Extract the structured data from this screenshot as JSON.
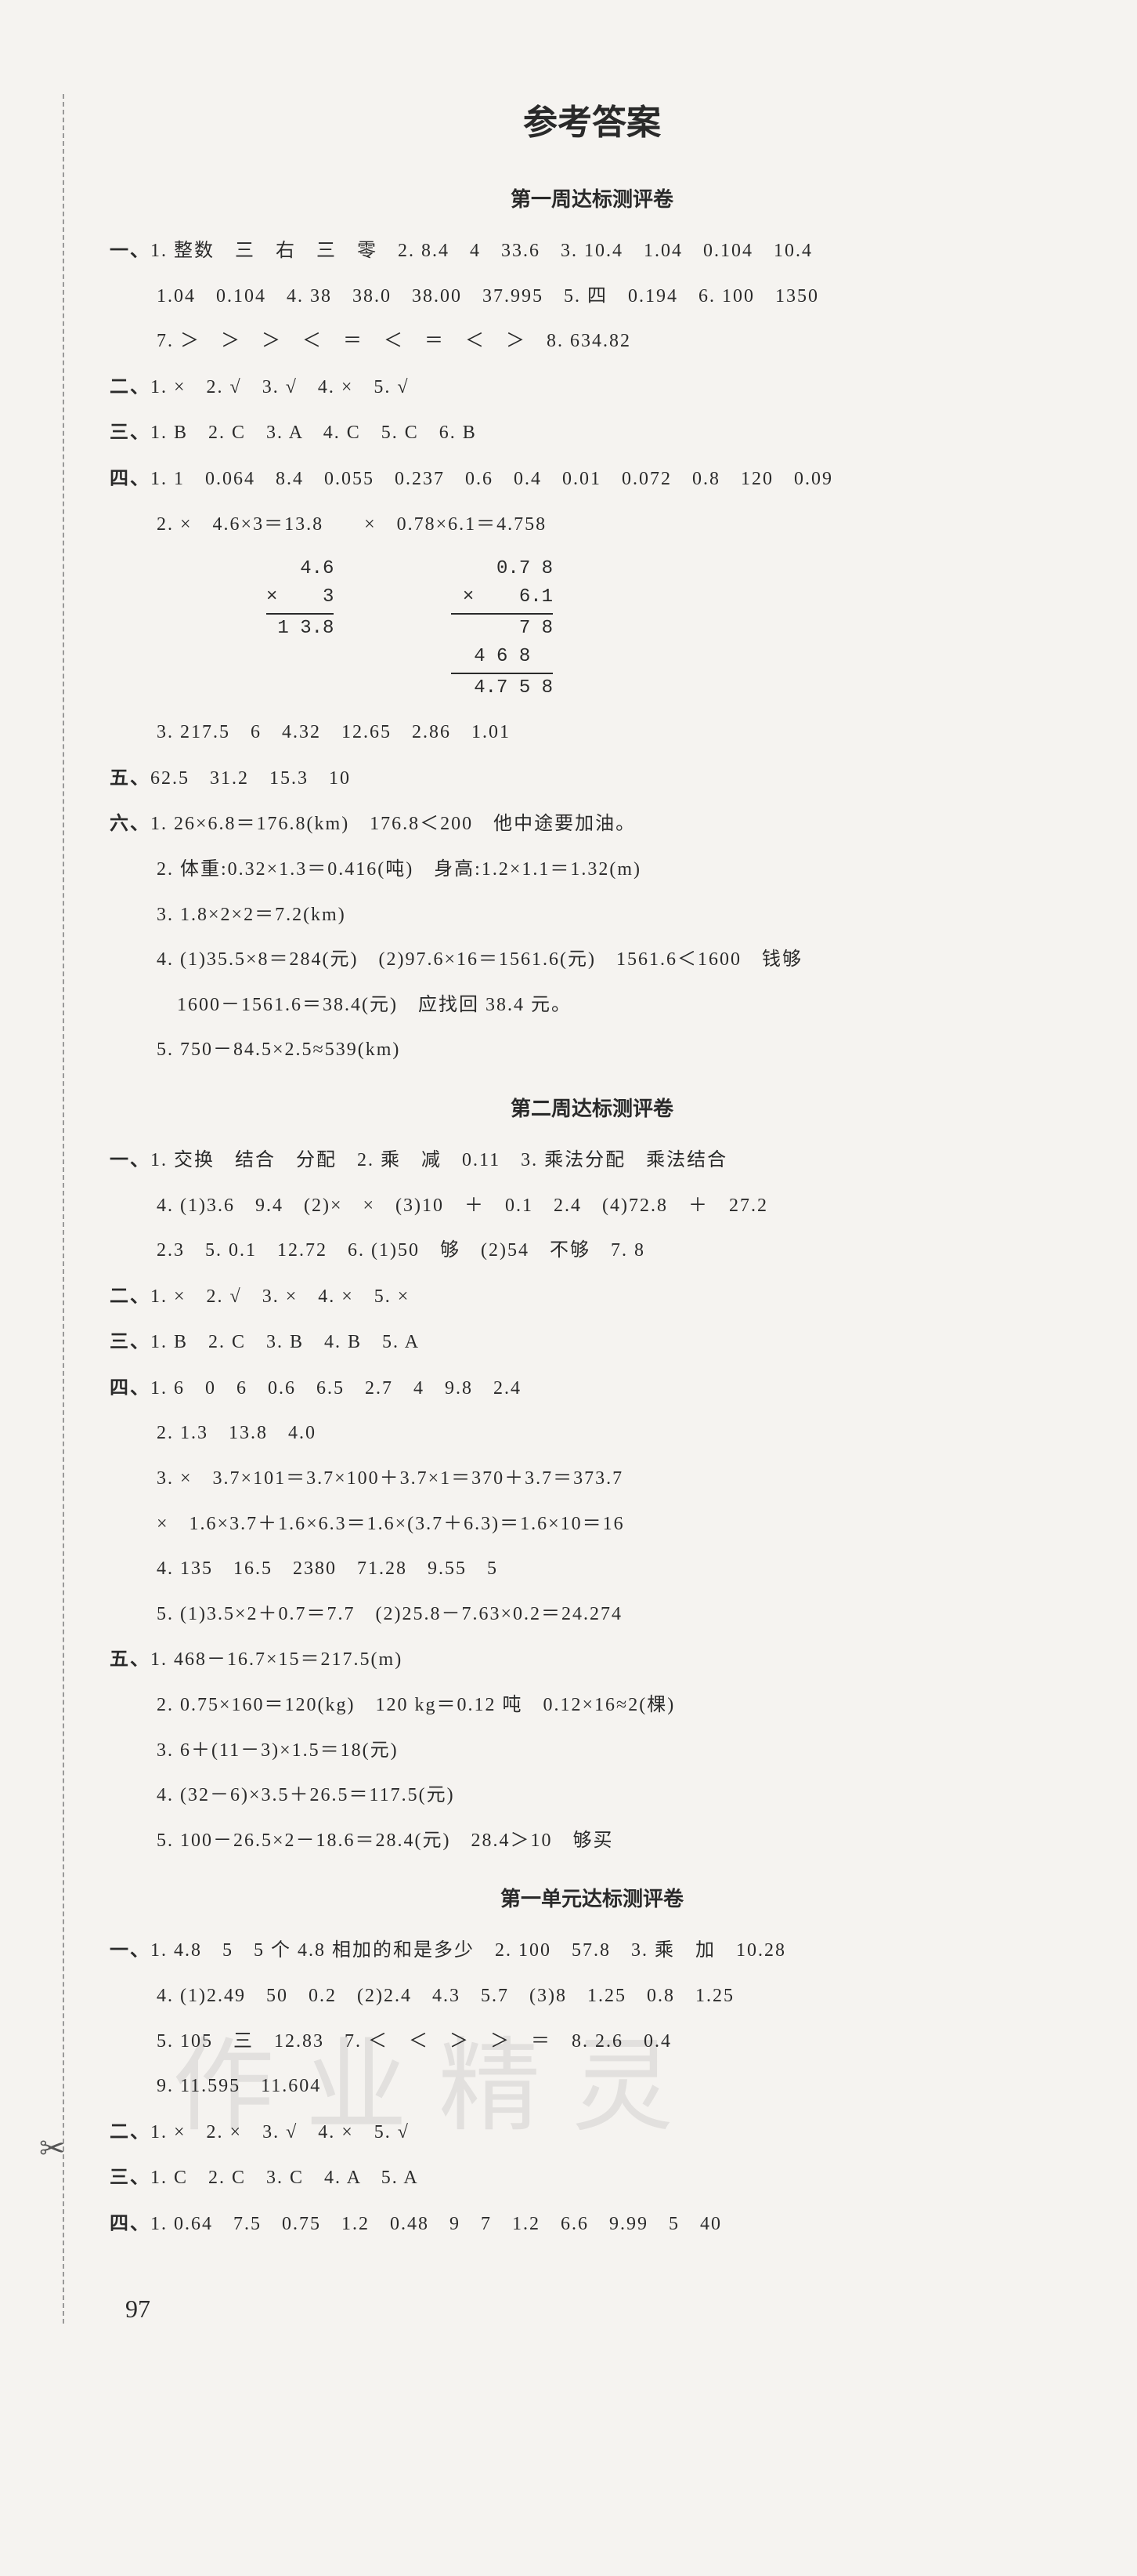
{
  "title": "参考答案",
  "page_number": "97",
  "watermark_text": "作业精灵",
  "sections": [
    {
      "title": "第一周达标测评卷",
      "groups": [
        {
          "label": "一、",
          "lines": [
            "1. 整数　三　右　三　零　2. 8.4　4　33.6　3. 10.4　1.04　0.104　10.4",
            "1.04　0.104　4. 38　38.0　38.00　37.995　5. 四　0.194　6. 100　1350",
            "7. ＞　＞　＞　＜　＝　＜　＝　＜　＞　8. 634.82"
          ]
        },
        {
          "label": "二、",
          "lines": [
            "1. ×　2. √　3. √　4. ×　5. √"
          ]
        },
        {
          "label": "三、",
          "lines": [
            "1. B　2. C　3. A　4. C　5. C　6. B"
          ]
        },
        {
          "label": "四、",
          "lines": [
            "1. 1　0.064　8.4　0.055　0.237　0.6　0.4　0.01　0.072　0.8　120　0.09",
            "2. ×　4.6×3＝13.8　　×　0.78×6.1＝4.758"
          ],
          "calc": [
            {
              "rows": [
                "   4.6",
                "×    3",
                " 1 3.8"
              ],
              "lines_after": [
                2
              ]
            },
            {
              "rows": [
                "    0.7 8",
                "×    6.1",
                "      7 8",
                "  4 6 8  ",
                "  4.7 5 8"
              ],
              "lines_after": [
                2,
                4
              ]
            }
          ],
          "lines_after_calc": [
            "3. 217.5　6　4.32　12.65　2.86　1.01"
          ]
        },
        {
          "label": "五、",
          "lines": [
            "62.5　31.2　15.3　10"
          ]
        },
        {
          "label": "六、",
          "lines": [
            "1. 26×6.8＝176.8(km)　176.8＜200　他中途要加油。",
            "2. 体重:0.32×1.3＝0.416(吨)　身高:1.2×1.1＝1.32(m)",
            "3. 1.8×2×2＝7.2(km)",
            "4. (1)35.5×8＝284(元)　(2)97.6×16＝1561.6(元)　1561.6＜1600　钱够",
            "　1600－1561.6＝38.4(元)　应找回 38.4 元。",
            "5. 750－84.5×2.5≈539(km)"
          ]
        }
      ]
    },
    {
      "title": "第二周达标测评卷",
      "groups": [
        {
          "label": "一、",
          "lines": [
            "1. 交换　结合　分配　2. 乘　减　0.11　3. 乘法分配　乘法结合",
            "4. (1)3.6　9.4　(2)×　×　(3)10　＋　0.1　2.4　(4)72.8　＋　27.2",
            "2.3　5. 0.1　12.72　6. (1)50　够　(2)54　不够　7. 8"
          ]
        },
        {
          "label": "二、",
          "lines": [
            "1. ×　2. √　3. ×　4. ×　5. ×"
          ]
        },
        {
          "label": "三、",
          "lines": [
            "1. B　2. C　3. B　4. B　5. A"
          ]
        },
        {
          "label": "四、",
          "lines": [
            "1. 6　0　6　0.6　6.5　2.7　4　9.8　2.4",
            "2. 1.3　13.8　4.0",
            "3. ×　3.7×101＝3.7×100＋3.7×1＝370＋3.7＝373.7",
            "×　1.6×3.7＋1.6×6.3＝1.6×(3.7＋6.3)＝1.6×10＝16",
            "4. 135　16.5　2380　71.28　9.55　5",
            "5. (1)3.5×2＋0.7＝7.7　(2)25.8－7.63×0.2＝24.274"
          ]
        },
        {
          "label": "五、",
          "lines": [
            "1. 468－16.7×15＝217.5(m)",
            "2. 0.75×160＝120(kg)　120 kg＝0.12 吨　0.12×16≈2(棵)",
            "3. 6＋(11－3)×1.5＝18(元)",
            "4. (32－6)×3.5＋26.5＝117.5(元)",
            "5. 100－26.5×2－18.6＝28.4(元)　28.4＞10　够买"
          ]
        }
      ]
    },
    {
      "title": "第一单元达标测评卷",
      "groups": [
        {
          "label": "一、",
          "lines": [
            "1. 4.8　5　5 个 4.8 相加的和是多少　2. 100　57.8　3. 乘　加　10.28",
            "4. (1)2.49　50　0.2　(2)2.4　4.3　5.7　(3)8　1.25　0.8　1.25",
            "5. 105　三　12.83　7. ＜　＜　＞　＞　＝　8. 2.6　0.4",
            "9. 11.595　11.604"
          ]
        },
        {
          "label": "二、",
          "lines": [
            "1. ×　2. ×　3. √　4. ×　5. √"
          ]
        },
        {
          "label": "三、",
          "lines": [
            "1. C　2. C　3. C　4. A　5. A"
          ]
        },
        {
          "label": "四、",
          "lines": [
            "1. 0.64　7.5　0.75　1.2　0.48　9　7　1.2　6.6　9.99　5　40"
          ]
        }
      ]
    }
  ],
  "style": {
    "background_color": "#f5f3f0",
    "text_color": "#2a2a2a",
    "title_fontsize": 44,
    "section_title_fontsize": 26,
    "body_fontsize": 24,
    "line_height": 2.4
  }
}
